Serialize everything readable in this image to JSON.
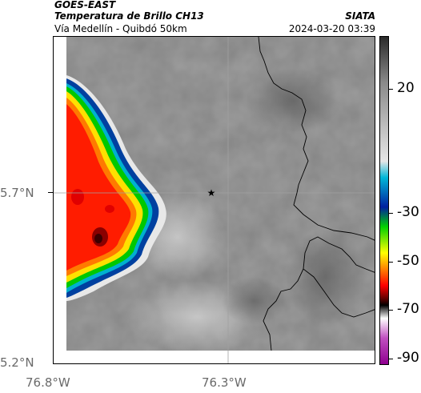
{
  "header": {
    "satellite": "GOES-EAST",
    "product": "Temperatura de Brillo CH13",
    "subtitle": "Vía Medellín - Quibdó 50km",
    "organization": "SIATA",
    "datetime": "2024-03-20 03:39"
  },
  "map": {
    "lat_labels": [
      "5.7°N",
      "5.2°N"
    ],
    "lon_labels": [
      "76.8°W",
      "76.3°W"
    ],
    "marker": "star-icon",
    "cold_cloud_colors": [
      "#ff1a00",
      "#ff6a00",
      "#ffd200",
      "#00c800",
      "#0050c8"
    ]
  },
  "colorbar": {
    "labels": [
      "20",
      "-30",
      "-50",
      "-70",
      "-90"
    ],
    "stops": [
      "#2a2a2a",
      "#8a8a8a",
      "#e6e6e6",
      "#00b8d8",
      "#0020a0",
      "#00d000",
      "#ffff00",
      "#ff8000",
      "#ff0000",
      "#600000",
      "#000000",
      "#ffffff",
      "#c050c0",
      "#900090"
    ]
  }
}
